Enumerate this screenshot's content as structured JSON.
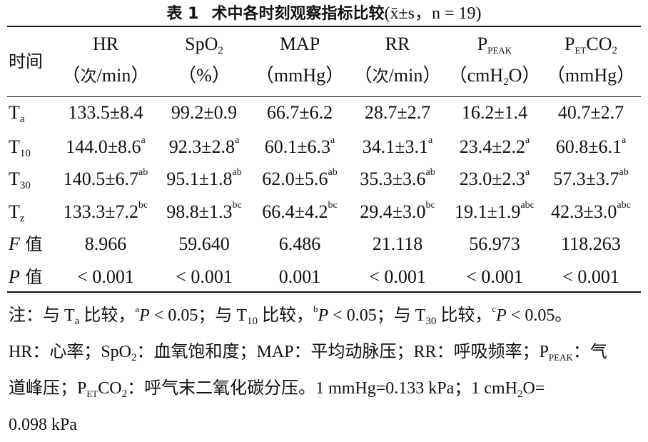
{
  "table": {
    "title_label": "表 1",
    "title_text": "术中各时刻观察指标比较",
    "title_stat": "(x̄±s，n = 19)",
    "row_header": "时间",
    "columns": [
      {
        "name": "HR",
        "unit": "（次/min）"
      },
      {
        "name": "SpO2",
        "unit": "（%）"
      },
      {
        "name": "MAP",
        "unit": "（mmHg）"
      },
      {
        "name": "RR",
        "unit": "（次/min）"
      },
      {
        "name": "PPEAK",
        "unit": "（cmH2O）"
      },
      {
        "name": "PETCO2",
        "unit": "（mmHg）"
      }
    ],
    "rows": [
      {
        "label": "Ta",
        "cells": [
          {
            "v": "133.5±8.4",
            "s": ""
          },
          {
            "v": "99.2±0.9",
            "s": ""
          },
          {
            "v": "66.7±6.2",
            "s": ""
          },
          {
            "v": "28.7±2.7",
            "s": ""
          },
          {
            "v": "16.2±1.4",
            "s": ""
          },
          {
            "v": "40.7±2.7",
            "s": ""
          }
        ]
      },
      {
        "label": "T10",
        "cells": [
          {
            "v": "144.0±8.6",
            "s": "a"
          },
          {
            "v": "92.3±2.8",
            "s": "a"
          },
          {
            "v": "60.1±6.3",
            "s": "a"
          },
          {
            "v": "34.1±3.1",
            "s": "a"
          },
          {
            "v": "23.4±2.2",
            "s": "a"
          },
          {
            "v": "60.8±6.1",
            "s": "a"
          }
        ]
      },
      {
        "label": "T30",
        "cells": [
          {
            "v": "140.5±6.7",
            "s": "ab"
          },
          {
            "v": "95.1±1.8",
            "s": "ab"
          },
          {
            "v": "62.0±5.6",
            "s": "ab"
          },
          {
            "v": "35.3±3.6",
            "s": "ab"
          },
          {
            "v": "23.0±2.3",
            "s": "a"
          },
          {
            "v": "57.3±3.7",
            "s": "ab"
          }
        ]
      },
      {
        "label": "Tz",
        "cells": [
          {
            "v": "133.3±7.2",
            "s": "bc"
          },
          {
            "v": "98.8±1.3",
            "s": "bc"
          },
          {
            "v": "66.4±4.2",
            "s": "bc"
          },
          {
            "v": "29.4±3.0",
            "s": "bc"
          },
          {
            "v": "19.1±1.9",
            "s": "abc"
          },
          {
            "v": "42.3±3.0",
            "s": "abc"
          }
        ]
      },
      {
        "label": "F 值",
        "cells": [
          {
            "v": "8.966",
            "s": ""
          },
          {
            "v": "59.640",
            "s": ""
          },
          {
            "v": "6.486",
            "s": ""
          },
          {
            "v": "21.118",
            "s": ""
          },
          {
            "v": "56.973",
            "s": ""
          },
          {
            "v": "118.263",
            "s": ""
          }
        ]
      },
      {
        "label": "P 值",
        "cells": [
          {
            "v": "< 0.001",
            "s": ""
          },
          {
            "v": "< 0.001",
            "s": ""
          },
          {
            "v": "0.001",
            "s": ""
          },
          {
            "v": "< 0.001",
            "s": ""
          },
          {
            "v": "< 0.001",
            "s": ""
          },
          {
            "v": "< 0.001",
            "s": ""
          }
        ]
      }
    ]
  },
  "note": {
    "line1": "注：与 Ta 比较，aP < 0.05；与 T10 比较，bP < 0.05；与 T30 比较，cP < 0.05。",
    "line2": "HR：心率；SpO2：血氧饱和度；MAP：平均动脉压；RR：呼吸频率；PPEAK：气",
    "line3": "道峰压；PETCO2：呼气末二氧化碳分压。1 mmHg=0.133 kPa；1 cmH2O=",
    "line4": "0.098 kPa"
  }
}
